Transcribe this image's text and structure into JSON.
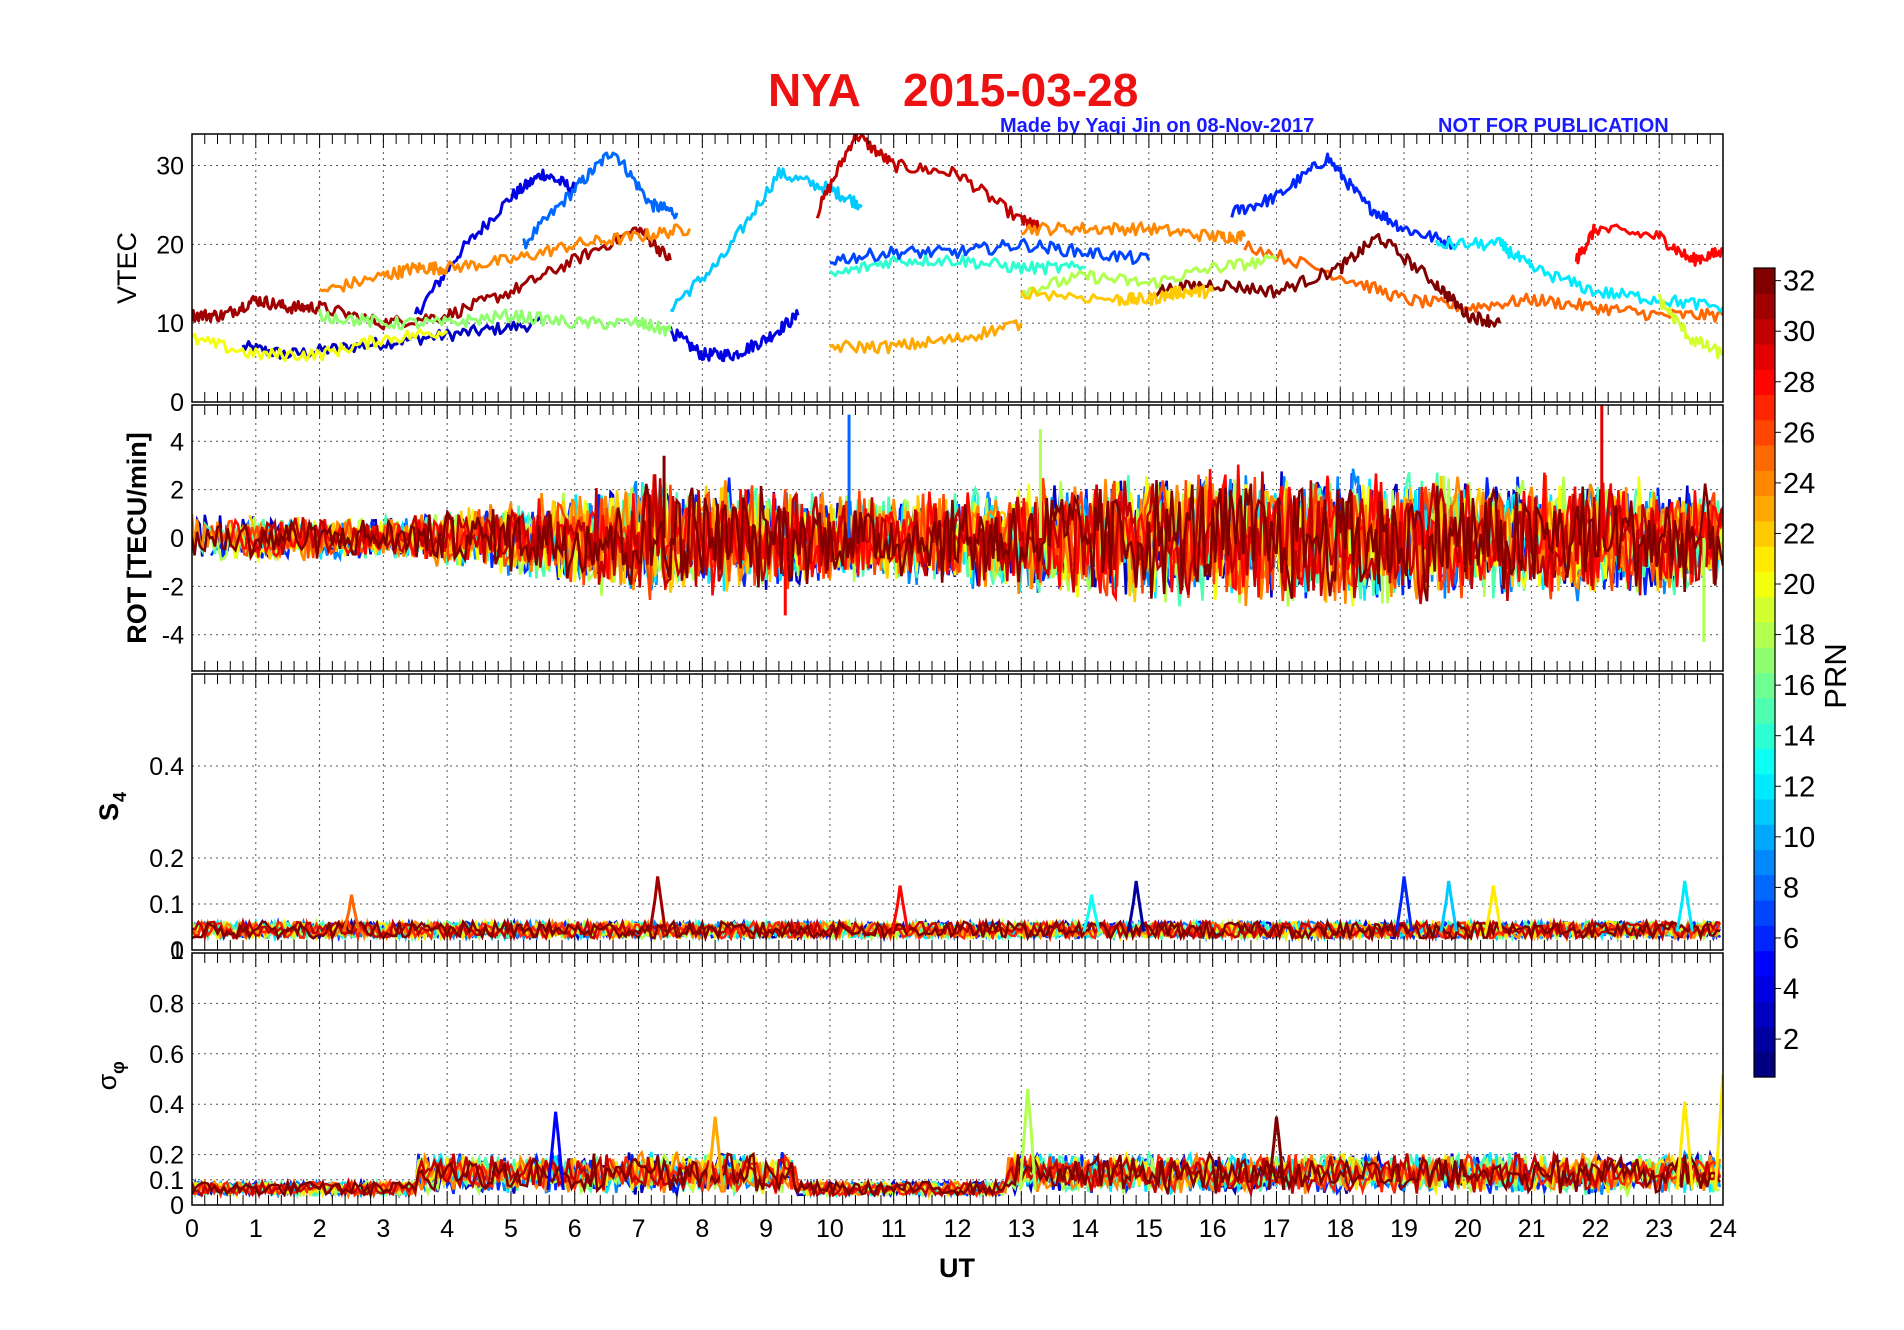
{
  "title_station": "NYA",
  "title_date": "2015-03-28",
  "credit_made_by": "Made by Yaqi Jin on 08-Nov-2017",
  "credit_notice": "NOT FOR PUBLICATION",
  "x_label": "UT",
  "colorbar": {
    "label": "PRN",
    "range": [
      1,
      32
    ],
    "ticks": [
      "2",
      "4",
      "6",
      "8",
      "10",
      "12",
      "14",
      "16",
      "18",
      "20",
      "22",
      "24",
      "26",
      "28",
      "30",
      "32"
    ],
    "colormap": "jet"
  },
  "chart_data": [
    {
      "type": "line",
      "panel": "VTEC",
      "ylabel": "VTEC",
      "xlim": [
        0,
        24
      ],
      "ylim": [
        0,
        34
      ],
      "x_ticks": [
        0,
        1,
        2,
        3,
        4,
        5,
        6,
        7,
        8,
        9,
        10,
        11,
        12,
        13,
        14,
        15,
        16,
        17,
        18,
        19,
        20,
        21,
        22,
        23,
        24
      ],
      "y_ticks": [
        "0",
        "10",
        "20",
        "30"
      ],
      "grid": true,
      "series": [
        {
          "prn": 3,
          "x": [
            0.8,
            1.5,
            2.5,
            3.5,
            4.5,
            5.5
          ],
          "y": [
            7,
            6,
            7,
            8,
            9,
            10
          ]
        },
        {
          "prn": 4,
          "x": [
            3.5,
            4.2,
            5.0,
            5.5,
            6.0
          ],
          "y": [
            11,
            19,
            26,
            29,
            27
          ]
        },
        {
          "prn": 8,
          "x": [
            5.2,
            6.0,
            6.6,
            7.2,
            7.6
          ],
          "y": [
            20,
            27,
            32,
            25,
            24
          ]
        },
        {
          "prn": 4,
          "x": [
            7.5,
            8.0,
            8.5,
            9.0,
            9.5
          ],
          "y": [
            9,
            6,
            6,
            8,
            11
          ]
        },
        {
          "prn": 11,
          "x": [
            7.5,
            8.3,
            9.2,
            10.0,
            10.5
          ],
          "y": [
            12,
            18,
            29,
            27,
            25
          ]
        },
        {
          "prn": 30,
          "x": [
            9.8,
            10.4,
            11.0,
            12.0,
            13.0,
            13.3
          ],
          "y": [
            24,
            34,
            30,
            29,
            23,
            22
          ]
        },
        {
          "prn": 6,
          "x": [
            16.3,
            17.0,
            17.8,
            18.4,
            19.0,
            19.8
          ],
          "y": [
            24,
            26,
            31,
            25,
            22,
            20
          ]
        },
        {
          "prn": 31,
          "x": [
            0,
            0.5,
            1.0,
            1.5,
            2.0,
            3.0,
            4.0,
            5.0,
            6.0,
            7.0,
            7.5
          ],
          "y": [
            11,
            11,
            13,
            12,
            12,
            10,
            11,
            14,
            18,
            22,
            18
          ]
        },
        {
          "prn": 24,
          "x": [
            2.0,
            3.0,
            3.5,
            4.0,
            5.0,
            6.0,
            7.0,
            7.8
          ],
          "y": [
            14,
            16,
            17,
            17,
            18,
            20,
            21,
            22
          ]
        },
        {
          "prn": 24,
          "x": [
            13.0,
            14.0,
            15.0,
            16.0,
            16.5
          ],
          "y": [
            22,
            22,
            22,
            21,
            21
          ]
        },
        {
          "prn": 25,
          "x": [
            16.5,
            18.0,
            19.0,
            20.0,
            21.0,
            22.0,
            23.0,
            24.0
          ],
          "y": [
            20,
            16,
            13,
            12,
            13,
            12,
            11,
            11
          ]
        },
        {
          "prn": 28,
          "x": [
            21.7,
            22.0,
            23.0,
            23.5,
            24.0
          ],
          "y": [
            18,
            22,
            21,
            18,
            19
          ]
        },
        {
          "prn": 32,
          "x": [
            15.0,
            16.0,
            17.0,
            18.0,
            18.6,
            19.5,
            20.0,
            20.5
          ],
          "y": [
            14,
            15,
            14,
            17,
            21,
            15,
            11,
            10
          ]
        },
        {
          "prn": 20,
          "x": [
            0,
            1.0,
            2.0,
            3.0,
            4.0
          ],
          "y": [
            8,
            6,
            6,
            8,
            9
          ]
        },
        {
          "prn": 18,
          "x": [
            13.0,
            14.0,
            15.0,
            16.0,
            17.0
          ],
          "y": [
            14,
            16,
            15,
            17,
            18
          ]
        },
        {
          "prn": 22,
          "x": [
            13.0,
            14.5,
            15.0,
            15.5,
            16.0
          ],
          "y": [
            14,
            13,
            13,
            14,
            14
          ]
        },
        {
          "prn": 14,
          "x": [
            10.0,
            11.0,
            12.0,
            13.0,
            14.0
          ],
          "y": [
            16,
            18,
            18,
            17,
            17
          ]
        },
        {
          "prn": 7,
          "x": [
            10.0,
            11.0,
            12.0,
            13.0,
            14.0,
            15.0
          ],
          "y": [
            18,
            19,
            19,
            20,
            19,
            18
          ]
        },
        {
          "prn": 23,
          "x": [
            10.0,
            11.0,
            12.0,
            13.0
          ],
          "y": [
            7,
            7,
            8,
            10
          ]
        },
        {
          "prn": 17,
          "x": [
            2.0,
            3.0,
            4.0,
            5.0,
            6.0,
            7.0,
            7.5
          ],
          "y": [
            11,
            10,
            10,
            11,
            10,
            10,
            9
          ]
        },
        {
          "prn": 12,
          "x": [
            19.5,
            20.5,
            21.0,
            22.0,
            23.0,
            24.0
          ],
          "y": [
            20,
            20,
            17,
            14,
            13,
            12
          ]
        },
        {
          "prn": 19,
          "x": [
            23.0,
            23.5,
            24.0
          ],
          "y": [
            13,
            8,
            6
          ]
        }
      ]
    },
    {
      "type": "line",
      "panel": "ROT",
      "ylabel": "ROT [TECU/min]",
      "xlim": [
        0,
        24
      ],
      "ylim": [
        -5.5,
        5.5
      ],
      "y_ticks": [
        "-4",
        "-2",
        "0",
        "2",
        "4"
      ],
      "grid": true,
      "notable_peaks": [
        {
          "x": 10.3,
          "y": 5.1,
          "prn": 8
        },
        {
          "x": 13.3,
          "y": 4.5,
          "prn": 18
        },
        {
          "x": 22.1,
          "y": 5.5,
          "prn": 29
        },
        {
          "x": 23.7,
          "y": -4.3,
          "prn": 18
        },
        {
          "x": 7.4,
          "y": 3.4,
          "prn": 32
        },
        {
          "x": 9.3,
          "y": -3.2,
          "prn": 28
        }
      ],
      "envelope": {
        "x": [
          0,
          3,
          5,
          7,
          8,
          10,
          12,
          14,
          16,
          18,
          20,
          22,
          24
        ],
        "amplitude": [
          1.0,
          0.8,
          1.5,
          2.5,
          2.5,
          1.8,
          2.0,
          2.5,
          2.8,
          2.8,
          2.5,
          2.5,
          2.0
        ]
      }
    },
    {
      "type": "line",
      "panel": "S4",
      "ylabel": "S4",
      "xlim": [
        0,
        24
      ],
      "ylim": [
        0,
        0.6
      ],
      "y_ticks": [
        "0",
        "0.1",
        "0.2",
        "0.4"
      ],
      "extra_tick": "1",
      "grid": true,
      "notable_peaks": [
        {
          "x": 2.5,
          "y": 0.12,
          "prn": 25
        },
        {
          "x": 7.3,
          "y": 0.16,
          "prn": 31
        },
        {
          "x": 11.1,
          "y": 0.14,
          "prn": 28
        },
        {
          "x": 14.1,
          "y": 0.12,
          "prn": 13
        },
        {
          "x": 14.8,
          "y": 0.15,
          "prn": 2
        },
        {
          "x": 19.0,
          "y": 0.16,
          "prn": 6
        },
        {
          "x": 19.7,
          "y": 0.15,
          "prn": 11
        },
        {
          "x": 20.4,
          "y": 0.14,
          "prn": 21
        },
        {
          "x": 23.4,
          "y": 0.15,
          "prn": 12
        }
      ],
      "baseline": 0.04
    },
    {
      "type": "line",
      "panel": "sigma_phi",
      "ylabel": "σφ",
      "xlim": [
        0,
        24
      ],
      "ylim": [
        0,
        1.0
      ],
      "y_ticks": [
        "0",
        "0.1",
        "0.2",
        "0.4",
        "0.6",
        "0.8"
      ],
      "grid": true,
      "x_ticks": [
        0,
        1,
        2,
        3,
        4,
        5,
        6,
        7,
        8,
        9,
        10,
        11,
        12,
        13,
        14,
        15,
        16,
        17,
        18,
        19,
        20,
        21,
        22,
        23,
        24
      ],
      "notable_peaks": [
        {
          "x": 5.7,
          "y": 0.37,
          "prn": 5
        },
        {
          "x": 13.1,
          "y": 0.46,
          "prn": 18
        },
        {
          "x": 24.0,
          "y": 0.52,
          "prn": 21
        },
        {
          "x": 23.4,
          "y": 0.41,
          "prn": 21
        },
        {
          "x": 8.2,
          "y": 0.35,
          "prn": 23
        },
        {
          "x": 17.0,
          "y": 0.35,
          "prn": 32
        }
      ],
      "baseline": 0.06
    }
  ]
}
